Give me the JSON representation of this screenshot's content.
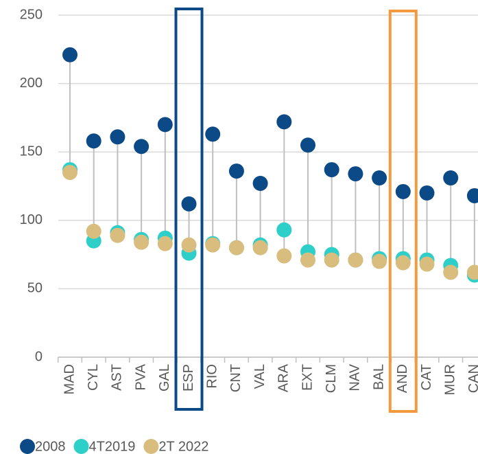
{
  "chart_data": {
    "type": "dot",
    "categories": [
      "MAD",
      "CYL",
      "AST",
      "PVA",
      "GAL",
      "ESP",
      "RIO",
      "CNT",
      "VAL",
      "ARA",
      "EXT",
      "CLM",
      "NAV",
      "BAL",
      "AND",
      "CAT",
      "MUR",
      "CAN"
    ],
    "series": [
      {
        "name": "2008",
        "color": "#0b4a86",
        "values": [
          221,
          158,
          161,
          154,
          170,
          112,
          163,
          136,
          127,
          172,
          155,
          137,
          134,
          131,
          121,
          120,
          131,
          118
        ]
      },
      {
        "name": "4T2019",
        "color": "#2ecfc9",
        "values": [
          137,
          85,
          91,
          86,
          87,
          76,
          83,
          80,
          82,
          93,
          77,
          75,
          71,
          72,
          72,
          71,
          67,
          60
        ]
      },
      {
        "name": "2T 2022",
        "color": "#d9bd7e",
        "values": [
          135,
          92,
          89,
          84,
          83,
          82,
          82,
          80,
          80,
          74,
          71,
          71,
          71,
          70,
          69,
          68,
          62,
          62
        ]
      }
    ],
    "ylim": [
      0,
      250
    ],
    "yticks": [
      0,
      50,
      100,
      150,
      200,
      250
    ],
    "grid": true,
    "highlights": [
      {
        "category": "ESP",
        "color": "#0b4a86"
      },
      {
        "category": "AND",
        "color": "#f39a3f"
      }
    ]
  }
}
